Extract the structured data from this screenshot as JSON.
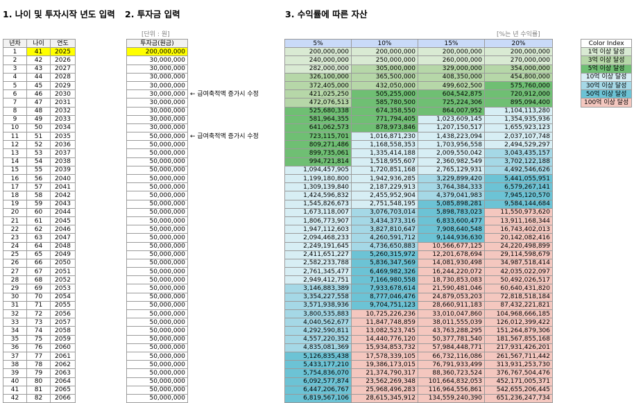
{
  "titles": {
    "section1": "1. 나이 및 투자시작 년도 입력",
    "section2": "2. 투자금 입력",
    "section3": "3. 수익률에 따른 자산"
  },
  "units": {
    "investment": "[단위 : 원]",
    "returns": "[%는 년 수익률]"
  },
  "table1": {
    "headers": [
      "년차",
      "나이",
      "연도"
    ],
    "start_age": 41,
    "start_year": 2025,
    "rows": [
      [
        "1",
        "41",
        "2025"
      ],
      [
        "2",
        "42",
        "2026"
      ],
      [
        "3",
        "43",
        "2027"
      ],
      [
        "4",
        "44",
        "2028"
      ],
      [
        "5",
        "45",
        "2029"
      ],
      [
        "6",
        "46",
        "2030"
      ],
      [
        "7",
        "47",
        "2031"
      ],
      [
        "8",
        "48",
        "2032"
      ],
      [
        "9",
        "49",
        "2033"
      ],
      [
        "10",
        "50",
        "2034"
      ],
      [
        "11",
        "51",
        "2035"
      ],
      [
        "12",
        "52",
        "2036"
      ],
      [
        "13",
        "53",
        "2037"
      ],
      [
        "14",
        "54",
        "2038"
      ],
      [
        "15",
        "55",
        "2039"
      ],
      [
        "16",
        "56",
        "2040"
      ],
      [
        "17",
        "57",
        "2041"
      ],
      [
        "18",
        "58",
        "2042"
      ],
      [
        "19",
        "59",
        "2043"
      ],
      [
        "20",
        "60",
        "2044"
      ],
      [
        "21",
        "61",
        "2045"
      ],
      [
        "22",
        "62",
        "2046"
      ],
      [
        "23",
        "63",
        "2047"
      ],
      [
        "24",
        "64",
        "2048"
      ],
      [
        "25",
        "65",
        "2049"
      ],
      [
        "26",
        "66",
        "2050"
      ],
      [
        "27",
        "67",
        "2051"
      ],
      [
        "28",
        "68",
        "2052"
      ],
      [
        "29",
        "69",
        "2053"
      ],
      [
        "30",
        "70",
        "2054"
      ],
      [
        "31",
        "71",
        "2055"
      ],
      [
        "32",
        "72",
        "2056"
      ],
      [
        "33",
        "73",
        "2057"
      ],
      [
        "34",
        "74",
        "2058"
      ],
      [
        "35",
        "75",
        "2059"
      ],
      [
        "36",
        "76",
        "2060"
      ],
      [
        "37",
        "77",
        "2061"
      ],
      [
        "38",
        "78",
        "2062"
      ],
      [
        "39",
        "79",
        "2063"
      ],
      [
        "40",
        "80",
        "2064"
      ],
      [
        "41",
        "81",
        "2065"
      ],
      [
        "42",
        "82",
        "2066"
      ]
    ]
  },
  "table2": {
    "header": "투자금(원금)",
    "values": [
      "200,000,000",
      "30,000,000",
      "30,000,000",
      "30,000,000",
      "30,000,000",
      "30,000,000",
      "30,000,000",
      "30,000,000",
      "30,000,000",
      "30,000,000",
      "50,000,000",
      "50,000,000",
      "50,000,000",
      "50,000,000",
      "50,000,000",
      "50,000,000",
      "50,000,000",
      "50,000,000",
      "50,000,000",
      "50,000,000",
      "50,000,000",
      "50,000,000",
      "50,000,000",
      "50,000,000",
      "50,000,000",
      "50,000,000",
      "50,000,000",
      "50,000,000",
      "50,000,000",
      "50,000,000",
      "50,000,000",
      "50,000,000",
      "50,000,000",
      "50,000,000",
      "50,000,000",
      "50,000,000",
      "50,000,000",
      "50,000,000",
      "50,000,000",
      "50,000,000",
      "50,000,000",
      "50,000,000"
    ],
    "notes": [
      {
        "row": 5,
        "text": "← 급여축적액 증가시 수정"
      },
      {
        "row": 10,
        "text": "← 급여축적액 증가시 수정"
      }
    ]
  },
  "table3": {
    "headers": [
      "5%",
      "10%",
      "15%",
      "20%"
    ],
    "rows": [
      [
        "200,000,000",
        "200,000,000",
        "200,000,000",
        "200,000,000"
      ],
      [
        "240,000,000",
        "250,000,000",
        "260,000,000",
        "270,000,000"
      ],
      [
        "282,000,000",
        "305,000,000",
        "329,000,000",
        "354,000,000"
      ],
      [
        "326,100,000",
        "365,500,000",
        "408,350,000",
        "454,800,000"
      ],
      [
        "372,405,000",
        "432,050,000",
        "499,602,500",
        "575,760,000"
      ],
      [
        "421,025,250",
        "505,255,000",
        "604,542,875",
        "720,912,000"
      ],
      [
        "472,076,513",
        "585,780,500",
        "725,224,306",
        "895,094,400"
      ],
      [
        "525,680,338",
        "674,358,550",
        "864,007,952",
        "1,104,113,280"
      ],
      [
        "581,964,355",
        "771,794,405",
        "1,023,609,145",
        "1,354,935,936"
      ],
      [
        "641,062,573",
        "878,973,846",
        "1,207,150,517",
        "1,655,923,123"
      ],
      [
        "723,115,701",
        "1,016,871,230",
        "1,438,223,094",
        "2,037,107,748"
      ],
      [
        "809,271,486",
        "1,168,558,353",
        "1,703,956,558",
        "2,494,529,297"
      ],
      [
        "899,735,061",
        "1,335,414,188",
        "2,009,550,042",
        "3,043,435,157"
      ],
      [
        "994,721,814",
        "1,518,955,607",
        "2,360,982,549",
        "3,702,122,188"
      ],
      [
        "1,094,457,905",
        "1,720,851,168",
        "2,765,129,931",
        "4,492,546,626"
      ],
      [
        "1,199,180,800",
        "1,942,936,285",
        "3,229,899,420",
        "5,441,055,951"
      ],
      [
        "1,309,139,840",
        "2,187,229,913",
        "3,764,384,333",
        "6,579,267,141"
      ],
      [
        "1,424,596,832",
        "2,455,952,904",
        "4,379,041,983",
        "7,945,120,570"
      ],
      [
        "1,545,826,673",
        "2,751,548,195",
        "5,085,898,281",
        "9,584,144,684"
      ],
      [
        "1,673,118,007",
        "3,076,703,014",
        "5,898,783,023",
        "11,550,973,620"
      ],
      [
        "1,806,773,907",
        "3,434,373,316",
        "6,833,600,477",
        "13,911,168,344"
      ],
      [
        "1,947,112,603",
        "3,827,810,647",
        "7,908,640,548",
        "16,743,402,013"
      ],
      [
        "2,094,468,233",
        "4,260,591,712",
        "9,144,936,630",
        "20,142,082,416"
      ],
      [
        "2,249,191,645",
        "4,736,650,883",
        "10,566,677,125",
        "24,220,498,899"
      ],
      [
        "2,411,651,227",
        "5,260,315,972",
        "12,201,678,694",
        "29,114,598,679"
      ],
      [
        "2,582,233,788",
        "5,836,347,569",
        "14,081,930,498",
        "34,987,518,414"
      ],
      [
        "2,761,345,477",
        "6,469,982,326",
        "16,244,220,072",
        "42,035,022,097"
      ],
      [
        "2,949,412,751",
        "7,166,980,558",
        "18,730,853,083",
        "50,492,026,517"
      ],
      [
        "3,146,883,389",
        "7,933,678,614",
        "21,590,481,046",
        "60,640,431,820"
      ],
      [
        "3,354,227,558",
        "8,777,046,476",
        "24,879,053,203",
        "72,818,518,184"
      ],
      [
        "3,571,938,936",
        "9,704,751,123",
        "28,660,911,183",
        "87,432,221,821"
      ],
      [
        "3,800,535,883",
        "10,725,226,236",
        "33,010,047,860",
        "104,968,666,185"
      ],
      [
        "4,040,562,677",
        "11,847,748,859",
        "38,011,555,039",
        "126,012,399,422"
      ],
      [
        "4,292,590,811",
        "13,082,523,745",
        "43,763,288,295",
        "151,264,879,306"
      ],
      [
        "4,557,220,352",
        "14,440,776,120",
        "50,377,781,540",
        "181,567,855,168"
      ],
      [
        "4,835,081,369",
        "15,934,853,732",
        "57,984,448,771",
        "217,931,426,201"
      ],
      [
        "5,126,835,438",
        "17,578,339,105",
        "66,732,116,086",
        "261,567,711,442"
      ],
      [
        "5,433,177,210",
        "19,386,173,015",
        "76,791,933,499",
        "313,931,253,730"
      ],
      [
        "5,754,836,070",
        "21,374,790,317",
        "88,360,723,524",
        "376,767,504,476"
      ],
      [
        "6,092,577,874",
        "23,562,269,348",
        "101,664,832,053",
        "452,171,005,371"
      ],
      [
        "6,447,206,767",
        "25,968,496,283",
        "116,964,556,861",
        "542,655,206,445"
      ],
      [
        "6,819,567,106",
        "28,615,345,912",
        "134,559,240,390",
        "651,236,247,734"
      ]
    ]
  },
  "legend": {
    "title": "Color Index",
    "items": [
      {
        "label": "1억 이상 달성",
        "color": "#d9ead3"
      },
      {
        "label": "3억 이상 달성",
        "color": "#b6d7a8"
      },
      {
        "label": "5억 이상 달성",
        "color": "#6fbf73"
      },
      {
        "label": "10억 이상 달성",
        "color": "#d7eef4"
      },
      {
        "label": "30억 이상 달성",
        "color": "#a5d8e6"
      },
      {
        "label": "50억 이상 달성",
        "color": "#6cc3d5"
      },
      {
        "label": "100억 이상 달성",
        "color": "#f4c7bf"
      }
    ]
  },
  "colors": {
    "c1": "#d9ead3",
    "c3": "#b6d7a8",
    "c5": "#6fbf73",
    "c10": "#d7eef4",
    "c30": "#a5d8e6",
    "c50": "#6cc3d5",
    "c100": "#f4c7bf",
    "header_blue": "#c9daf8",
    "input_yellow": "#ffff00"
  }
}
